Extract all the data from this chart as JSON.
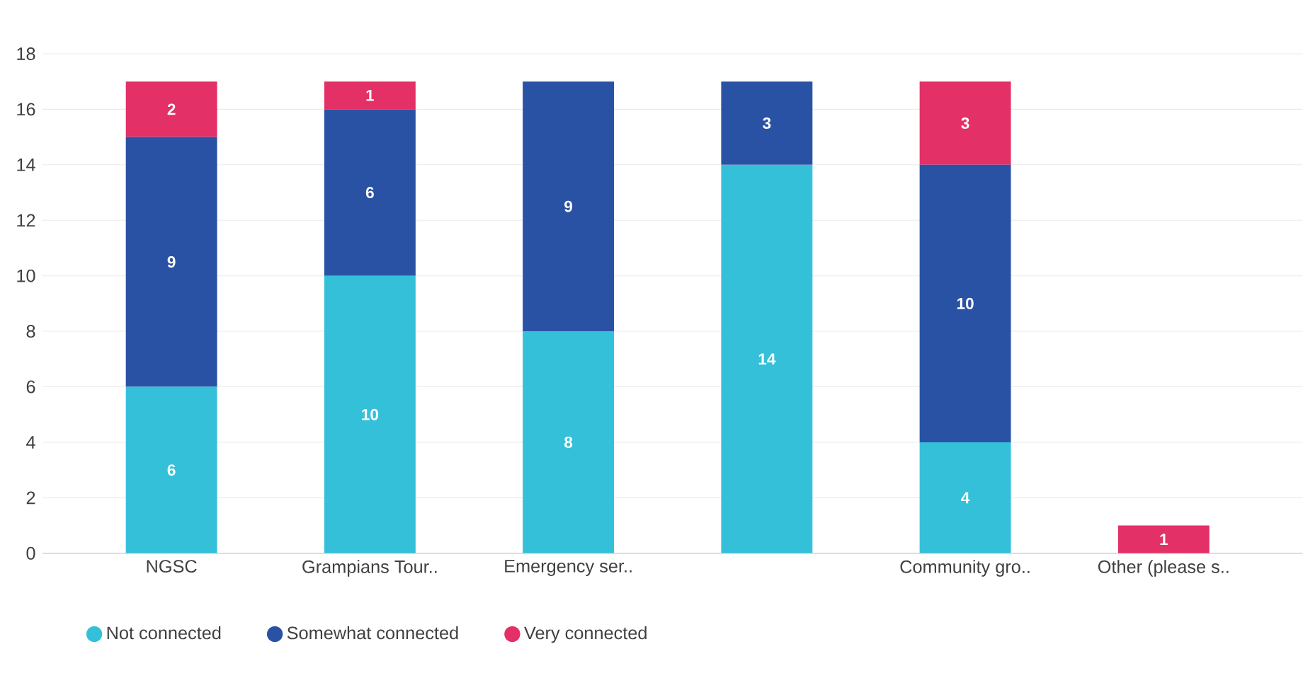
{
  "chart_data": {
    "type": "bar",
    "stacked": true,
    "categories": [
      "NGSC",
      "Grampians Tour..",
      "Emergency ser..",
      null,
      "Community gro..",
      "Other (please s.."
    ],
    "series": [
      {
        "name": "Not connected",
        "color": "#35c0da",
        "values": [
          6,
          10,
          8,
          14,
          4,
          0
        ],
        "value_labels": [
          "6",
          "10",
          "8",
          "14",
          "4",
          null
        ]
      },
      {
        "name": "Somewhat connected",
        "color": "#2a52a4",
        "values": [
          9,
          6,
          9,
          3,
          10,
          0
        ],
        "value_labels": [
          "9",
          "6",
          "9",
          "3",
          "10",
          null
        ]
      },
      {
        "name": "Very connected",
        "color": "#e33066",
        "values": [
          2,
          1,
          0,
          0,
          3,
          1
        ],
        "value_labels": [
          "2",
          "1",
          null,
          null,
          "3",
          "1"
        ]
      }
    ],
    "ylim": [
      0,
      18
    ],
    "yticks": [
      0,
      2,
      4,
      6,
      8,
      10,
      12,
      14,
      16,
      18
    ],
    "grid": "y",
    "legend": "bottom left"
  }
}
